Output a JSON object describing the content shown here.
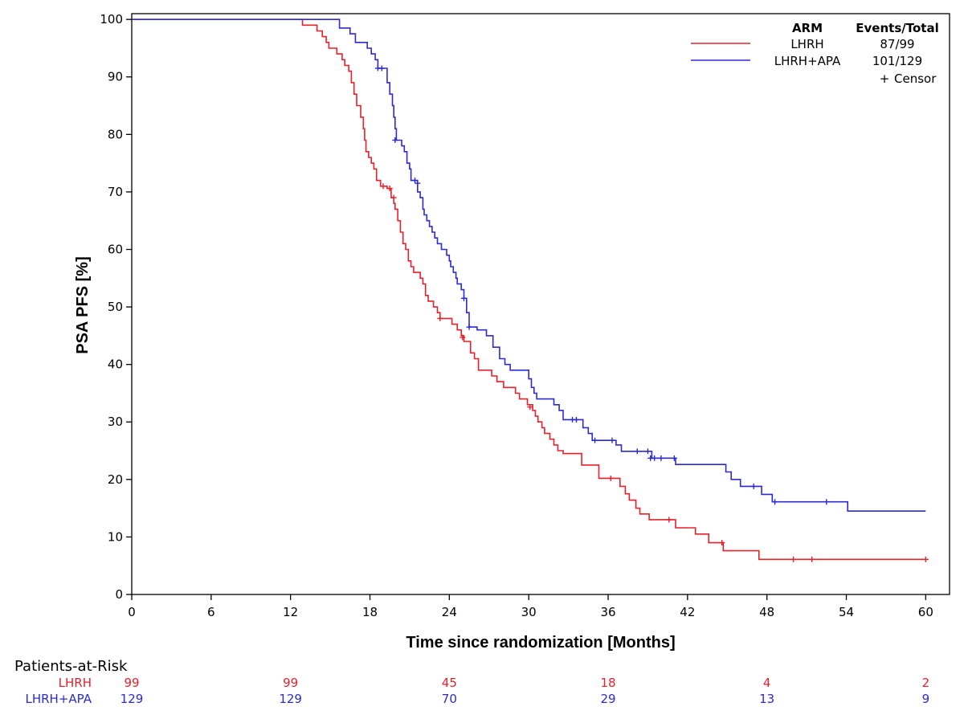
{
  "chart_data": {
    "type": "line",
    "step": true,
    "title": "",
    "xlabel": "Time since randomization [Months]",
    "ylabel": "PSA PFS [%]",
    "xlim": [
      0,
      61.8
    ],
    "ylim": [
      0,
      101
    ],
    "xticks": [
      0,
      6,
      12,
      18,
      24,
      30,
      36,
      42,
      48,
      54,
      60
    ],
    "yticks": [
      0,
      10,
      20,
      30,
      40,
      50,
      60,
      70,
      80,
      90,
      100
    ],
    "grid": false,
    "legend": {
      "placement": "top-right",
      "header_arm": "ARM",
      "header_events": "Events/Total",
      "censor_label": "Censor",
      "censor_symbol": "+"
    },
    "series": [
      {
        "name": "LHRH",
        "events_total": "87/99",
        "color": "#e8202a",
        "points": [
          [
            0,
            100
          ],
          [
            12.9,
            100
          ],
          [
            12.9,
            99
          ],
          [
            14.0,
            99
          ],
          [
            14.0,
            98
          ],
          [
            14.4,
            98
          ],
          [
            14.4,
            97
          ],
          [
            14.7,
            97
          ],
          [
            14.7,
            96
          ],
          [
            14.9,
            96
          ],
          [
            14.9,
            95
          ],
          [
            15.5,
            95
          ],
          [
            15.5,
            94
          ],
          [
            15.9,
            94
          ],
          [
            15.9,
            93
          ],
          [
            16.1,
            93
          ],
          [
            16.1,
            92
          ],
          [
            16.4,
            92
          ],
          [
            16.4,
            91
          ],
          [
            16.6,
            91
          ],
          [
            16.6,
            89
          ],
          [
            16.8,
            89
          ],
          [
            16.8,
            87
          ],
          [
            17.0,
            87
          ],
          [
            17.0,
            85
          ],
          [
            17.3,
            85
          ],
          [
            17.3,
            83
          ],
          [
            17.5,
            83
          ],
          [
            17.5,
            81
          ],
          [
            17.6,
            81
          ],
          [
            17.6,
            79
          ],
          [
            17.7,
            79
          ],
          [
            17.7,
            77
          ],
          [
            17.9,
            77
          ],
          [
            17.9,
            76
          ],
          [
            18.1,
            76
          ],
          [
            18.1,
            75
          ],
          [
            18.3,
            75
          ],
          [
            18.3,
            74
          ],
          [
            18.5,
            74
          ],
          [
            18.5,
            72
          ],
          [
            18.8,
            72
          ],
          [
            18.8,
            71
          ],
          [
            19.3,
            71
          ],
          [
            19.3,
            70.6
          ],
          [
            19.6,
            70.6
          ],
          [
            19.6,
            69
          ],
          [
            19.8,
            69
          ],
          [
            19.8,
            68
          ],
          [
            19.9,
            68
          ],
          [
            19.9,
            67
          ],
          [
            20.1,
            67
          ],
          [
            20.1,
            65
          ],
          [
            20.3,
            65
          ],
          [
            20.3,
            63
          ],
          [
            20.5,
            63
          ],
          [
            20.5,
            61
          ],
          [
            20.7,
            61
          ],
          [
            20.7,
            60
          ],
          [
            20.9,
            60
          ],
          [
            20.9,
            58
          ],
          [
            21.1,
            58
          ],
          [
            21.1,
            57
          ],
          [
            21.3,
            57
          ],
          [
            21.3,
            56
          ],
          [
            21.8,
            56
          ],
          [
            21.8,
            55
          ],
          [
            22.0,
            55
          ],
          [
            22.0,
            54
          ],
          [
            22.2,
            54
          ],
          [
            22.2,
            52
          ],
          [
            22.4,
            52
          ],
          [
            22.4,
            51
          ],
          [
            22.8,
            51
          ],
          [
            22.8,
            50
          ],
          [
            23.1,
            50
          ],
          [
            23.1,
            49
          ],
          [
            23.3,
            49
          ],
          [
            23.3,
            48
          ],
          [
            24.2,
            48
          ],
          [
            24.2,
            47
          ],
          [
            24.6,
            47
          ],
          [
            24.6,
            46
          ],
          [
            24.9,
            46
          ],
          [
            24.9,
            45
          ],
          [
            25.1,
            45
          ],
          [
            25.1,
            44
          ],
          [
            25.6,
            44
          ],
          [
            25.6,
            42
          ],
          [
            25.9,
            42
          ],
          [
            25.9,
            41
          ],
          [
            26.2,
            41
          ],
          [
            26.2,
            39
          ],
          [
            27.2,
            39
          ],
          [
            27.2,
            38
          ],
          [
            27.6,
            38
          ],
          [
            27.6,
            37
          ],
          [
            28.1,
            37
          ],
          [
            28.1,
            36
          ],
          [
            29.0,
            36
          ],
          [
            29.0,
            35
          ],
          [
            29.3,
            35
          ],
          [
            29.3,
            34
          ],
          [
            29.9,
            34
          ],
          [
            29.9,
            33
          ],
          [
            30.3,
            33
          ],
          [
            30.3,
            32
          ],
          [
            30.5,
            32
          ],
          [
            30.5,
            31
          ],
          [
            30.7,
            31
          ],
          [
            30.7,
            30
          ],
          [
            31.0,
            30
          ],
          [
            31.0,
            29
          ],
          [
            31.2,
            29
          ],
          [
            31.2,
            28
          ],
          [
            31.6,
            28
          ],
          [
            31.6,
            27
          ],
          [
            31.9,
            27
          ],
          [
            31.9,
            26
          ],
          [
            32.2,
            26
          ],
          [
            32.2,
            25
          ],
          [
            32.6,
            25
          ],
          [
            32.6,
            24.5
          ],
          [
            34.0,
            24.5
          ],
          [
            34.0,
            22.5
          ],
          [
            35.3,
            22.5
          ],
          [
            35.3,
            20.2
          ],
          [
            36.9,
            20.2
          ],
          [
            36.9,
            18.8
          ],
          [
            37.3,
            18.8
          ],
          [
            37.3,
            17.5
          ],
          [
            37.6,
            17.5
          ],
          [
            37.6,
            16.4
          ],
          [
            38.1,
            16.4
          ],
          [
            38.1,
            15
          ],
          [
            38.4,
            15
          ],
          [
            38.4,
            14
          ],
          [
            39.1,
            14
          ],
          [
            39.1,
            13
          ],
          [
            41.1,
            13
          ],
          [
            41.1,
            11.6
          ],
          [
            42.6,
            11.6
          ],
          [
            42.6,
            10.5
          ],
          [
            43.6,
            10.5
          ],
          [
            43.6,
            9
          ],
          [
            44.7,
            9
          ],
          [
            44.7,
            7.6
          ],
          [
            47.4,
            7.6
          ],
          [
            47.4,
            6.1
          ],
          [
            60.0,
            6.1
          ]
        ],
        "censor": [
          [
            19.0,
            71
          ],
          [
            19.5,
            70.6
          ],
          [
            19.8,
            69
          ],
          [
            23.3,
            48
          ],
          [
            25.0,
            44.7
          ],
          [
            30.1,
            32.6
          ],
          [
            36.2,
            20.2
          ],
          [
            40.6,
            13
          ],
          [
            44.6,
            9
          ],
          [
            50.0,
            6.1
          ],
          [
            51.4,
            6.1
          ],
          [
            60.0,
            6.1
          ]
        ]
      },
      {
        "name": "LHRH+APA",
        "events_total": "101/129",
        "color": "#2b2bd6",
        "points": [
          [
            0,
            100
          ],
          [
            15.7,
            100
          ],
          [
            15.7,
            98.5
          ],
          [
            16.5,
            98.5
          ],
          [
            16.5,
            97.5
          ],
          [
            16.9,
            97.5
          ],
          [
            16.9,
            96
          ],
          [
            17.8,
            96
          ],
          [
            17.8,
            95
          ],
          [
            18.1,
            95
          ],
          [
            18.1,
            94
          ],
          [
            18.4,
            94
          ],
          [
            18.4,
            93
          ],
          [
            18.6,
            93
          ],
          [
            18.6,
            91.5
          ],
          [
            19.3,
            91.5
          ],
          [
            19.3,
            89
          ],
          [
            19.5,
            89
          ],
          [
            19.5,
            87
          ],
          [
            19.7,
            87
          ],
          [
            19.7,
            85
          ],
          [
            19.8,
            85
          ],
          [
            19.8,
            83
          ],
          [
            19.9,
            83
          ],
          [
            19.9,
            81
          ],
          [
            20.0,
            81
          ],
          [
            20.0,
            79
          ],
          [
            20.4,
            79
          ],
          [
            20.4,
            78
          ],
          [
            20.6,
            78
          ],
          [
            20.6,
            77
          ],
          [
            20.8,
            77
          ],
          [
            20.8,
            75
          ],
          [
            21.0,
            75
          ],
          [
            21.0,
            74
          ],
          [
            21.1,
            74
          ],
          [
            21.1,
            72
          ],
          [
            21.6,
            72
          ],
          [
            21.6,
            70
          ],
          [
            21.8,
            70
          ],
          [
            21.8,
            69
          ],
          [
            22.0,
            69
          ],
          [
            22.0,
            67
          ],
          [
            22.1,
            67
          ],
          [
            22.1,
            66
          ],
          [
            22.3,
            66
          ],
          [
            22.3,
            65
          ],
          [
            22.5,
            65
          ],
          [
            22.5,
            64
          ],
          [
            22.7,
            64
          ],
          [
            22.7,
            63
          ],
          [
            22.9,
            63
          ],
          [
            22.9,
            62
          ],
          [
            23.1,
            62
          ],
          [
            23.1,
            61
          ],
          [
            23.4,
            61
          ],
          [
            23.4,
            60
          ],
          [
            23.8,
            60
          ],
          [
            23.8,
            59
          ],
          [
            24.0,
            59
          ],
          [
            24.0,
            58
          ],
          [
            24.1,
            58
          ],
          [
            24.1,
            57
          ],
          [
            24.3,
            57
          ],
          [
            24.3,
            56
          ],
          [
            24.5,
            56
          ],
          [
            24.5,
            55
          ],
          [
            24.6,
            55
          ],
          [
            24.6,
            54
          ],
          [
            24.9,
            54
          ],
          [
            24.9,
            53
          ],
          [
            25.1,
            53
          ],
          [
            25.1,
            51.5
          ],
          [
            25.3,
            51.5
          ],
          [
            25.3,
            49
          ],
          [
            25.5,
            49
          ],
          [
            25.5,
            46.5
          ],
          [
            26.1,
            46.5
          ],
          [
            26.1,
            46
          ],
          [
            26.8,
            46
          ],
          [
            26.8,
            45
          ],
          [
            27.3,
            45
          ],
          [
            27.3,
            43
          ],
          [
            27.8,
            43
          ],
          [
            27.8,
            41
          ],
          [
            28.2,
            41
          ],
          [
            28.2,
            40
          ],
          [
            28.6,
            40
          ],
          [
            28.6,
            39
          ],
          [
            30.0,
            39
          ],
          [
            30.0,
            37.5
          ],
          [
            30.2,
            37.5
          ],
          [
            30.2,
            36
          ],
          [
            30.4,
            36
          ],
          [
            30.4,
            35
          ],
          [
            30.6,
            35
          ],
          [
            30.6,
            34
          ],
          [
            31.9,
            34
          ],
          [
            31.9,
            33
          ],
          [
            32.3,
            33
          ],
          [
            32.3,
            32
          ],
          [
            32.6,
            32
          ],
          [
            32.6,
            30.4
          ],
          [
            34.1,
            30.4
          ],
          [
            34.1,
            29
          ],
          [
            34.5,
            29
          ],
          [
            34.5,
            28
          ],
          [
            34.8,
            28
          ],
          [
            34.8,
            26.8
          ],
          [
            36.6,
            26.8
          ],
          [
            36.6,
            26
          ],
          [
            37.0,
            26
          ],
          [
            37.0,
            24.9
          ],
          [
            39.3,
            24.9
          ],
          [
            39.3,
            23.7
          ],
          [
            41.1,
            23.7
          ],
          [
            41.1,
            22.6
          ],
          [
            44.9,
            22.6
          ],
          [
            44.9,
            21.3
          ],
          [
            45.3,
            21.3
          ],
          [
            45.3,
            20
          ],
          [
            46.0,
            20
          ],
          [
            46.0,
            18.8
          ],
          [
            47.6,
            18.8
          ],
          [
            47.6,
            17.4
          ],
          [
            48.4,
            17.4
          ],
          [
            48.4,
            16.1
          ],
          [
            54.1,
            16.1
          ],
          [
            54.1,
            14.5
          ],
          [
            60.0,
            14.5
          ]
        ],
        "censor": [
          [
            18.6,
            91.5
          ],
          [
            18.9,
            91.5
          ],
          [
            19.9,
            79
          ],
          [
            21.4,
            72
          ],
          [
            21.6,
            71.5
          ],
          [
            25.1,
            51.5
          ],
          [
            25.5,
            46.5
          ],
          [
            33.3,
            30.4
          ],
          [
            33.6,
            30.4
          ],
          [
            35.0,
            26.8
          ],
          [
            36.3,
            26.8
          ],
          [
            38.2,
            24.9
          ],
          [
            39.0,
            24.9
          ],
          [
            39.2,
            23.7
          ],
          [
            39.5,
            23.7
          ],
          [
            40.0,
            23.7
          ],
          [
            41.0,
            23.7
          ],
          [
            47.0,
            18.8
          ],
          [
            48.6,
            16.1
          ],
          [
            52.5,
            16.1
          ]
        ]
      }
    ],
    "risk_table": {
      "title": "Patients-at-Risk",
      "times": [
        0,
        12,
        24,
        36,
        48,
        60
      ],
      "rows": [
        {
          "name": "LHRH",
          "color": "#e8202a",
          "values": [
            "99",
            "99",
            "45",
            "18",
            "4",
            "2"
          ]
        },
        {
          "name": "LHRH+APA",
          "color": "#2b2bd6",
          "values": [
            "129",
            "129",
            "70",
            "29",
            "13",
            "9"
          ]
        }
      ]
    }
  }
}
